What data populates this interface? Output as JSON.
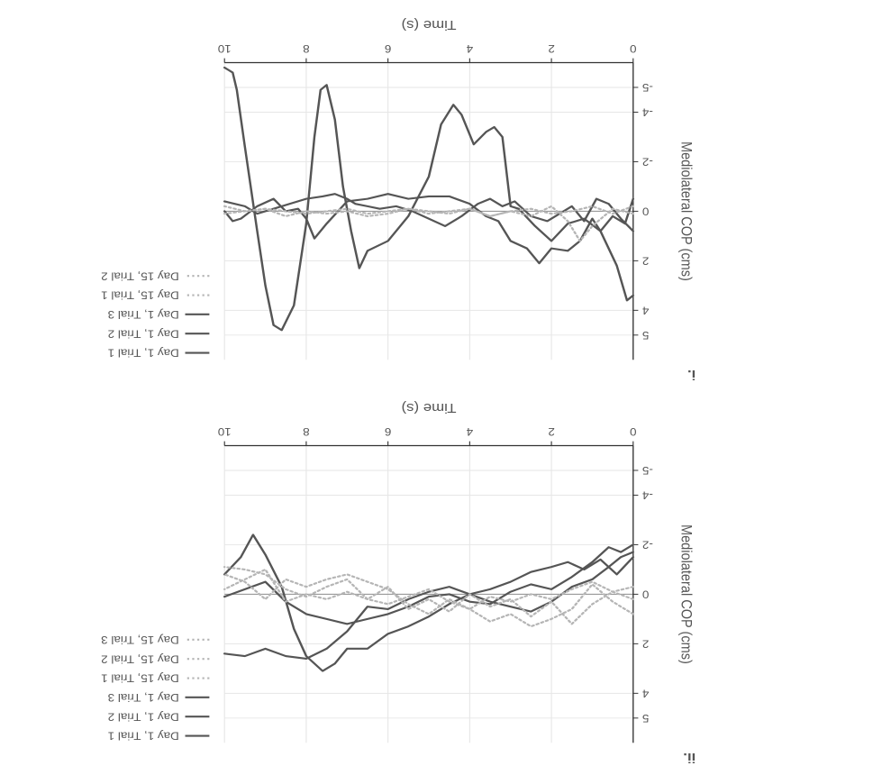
{
  "chart_data": [
    {
      "type": "line",
      "panel_label": "i.",
      "xlabel": "Time (s)",
      "ylabel": "Mediolateral COP (cms)",
      "xlim": [
        0,
        10
      ],
      "ylim": [
        -6,
        6
      ],
      "xticks": [
        0,
        2,
        4,
        6,
        8,
        10
      ],
      "yticks": [
        -5,
        -4,
        -2,
        0,
        2,
        4,
        5
      ],
      "grid": true,
      "legend_position": "right",
      "series": [
        {
          "name": "Day 1, Trial 1",
          "style": "solid",
          "color": "#555555",
          "x": [
            0,
            0.2,
            0.5,
            0.8,
            1.0,
            1.3,
            1.6,
            2.0,
            2.3,
            2.6,
            3.0,
            3.3,
            3.6,
            4.0,
            4.5,
            5.0,
            5.5,
            6.0,
            6.5,
            7.0,
            7.5,
            7.8,
            8.0,
            8.2,
            8.5,
            8.8,
            9.2,
            9.6,
            9.8,
            10.0
          ],
          "y": [
            -0.5,
            0.5,
            0.2,
            0.8,
            0.3,
            1.2,
            1.6,
            1.5,
            2.1,
            1.5,
            1.2,
            0.4,
            0.2,
            -0.3,
            -0.6,
            -0.6,
            -0.5,
            -0.7,
            -0.5,
            -0.4,
            0.5,
            1.1,
            0.3,
            -0.1,
            0.0,
            -0.5,
            -0.2,
            0.3,
            0.4,
            0.0
          ]
        },
        {
          "name": "Day 1, Trial 2",
          "style": "solid",
          "color": "#555555",
          "x": [
            0,
            0.3,
            0.6,
            0.9,
            1.2,
            1.5,
            1.8,
            2.1,
            2.5,
            2.9,
            3.2,
            3.5,
            3.8,
            4.2,
            4.6,
            5.0,
            5.4,
            5.8,
            6.2,
            6.5,
            6.8,
            7.0,
            7.3,
            7.6,
            8.0,
            8.4,
            8.8,
            9.2,
            9.5,
            10.0
          ],
          "y": [
            0.8,
            0.3,
            -0.3,
            -0.5,
            0.4,
            -0.2,
            0.1,
            0.4,
            0.2,
            -0.4,
            -0.2,
            -0.5,
            -0.3,
            0.2,
            0.6,
            0.3,
            0.0,
            -0.2,
            -0.1,
            -0.2,
            -0.3,
            -0.5,
            -0.7,
            -0.6,
            -0.5,
            -0.3,
            -0.1,
            0.1,
            -0.2,
            -0.4
          ]
        },
        {
          "name": "Day 1, Trial 3",
          "style": "solid",
          "color": "#555555",
          "x": [
            0,
            0.15,
            0.4,
            0.8,
            1.2,
            1.6,
            2.0,
            2.4,
            2.8,
            3.0,
            3.2,
            3.4,
            3.6,
            3.9,
            4.2,
            4.4,
            4.7,
            5.0,
            5.5,
            6.0,
            6.5,
            6.7,
            6.9,
            7.1,
            7.3,
            7.5,
            7.65,
            7.8,
            8.0,
            8.3,
            8.6,
            8.8,
            9.0,
            9.2,
            9.5,
            9.7,
            9.8,
            10.0
          ],
          "y": [
            3.4,
            3.6,
            2.2,
            0.8,
            0.3,
            0.5,
            1.2,
            0.6,
            -0.1,
            -0.2,
            -3.0,
            -3.4,
            -3.2,
            -2.7,
            -3.9,
            -4.3,
            -3.5,
            -1.4,
            0.2,
            1.2,
            1.6,
            2.3,
            0.8,
            -1.0,
            -3.7,
            -5.1,
            -4.9,
            -3.0,
            0.5,
            3.8,
            4.8,
            4.6,
            3.0,
            0.8,
            -2.6,
            -4.9,
            -5.6,
            -5.8
          ]
        },
        {
          "name": "Day 15, Trial 1",
          "style": "dotted",
          "color": "#b5b5b5",
          "x": [
            0,
            0.5,
            1.0,
            1.3,
            1.6,
            2.0,
            2.5,
            3.0,
            3.5,
            4.0,
            4.5,
            5.0,
            5.5,
            6.0,
            6.5,
            7.0,
            7.5,
            8.0,
            8.5,
            9.0,
            9.5,
            10.0
          ],
          "y": [
            0.1,
            -0.1,
            0.6,
            1.2,
            0.4,
            -0.2,
            0.2,
            0.0,
            0.2,
            -0.1,
            0.1,
            0.0,
            -0.1,
            0.1,
            0.2,
            0.0,
            0.1,
            0.0,
            0.2,
            -0.1,
            0.0,
            -0.2
          ]
        },
        {
          "name": "Day 15, Trial 2",
          "style": "dotted",
          "color": "#b5b5b5",
          "x": [
            0,
            0.5,
            1.0,
            1.5,
            2.0,
            2.5,
            3.0,
            3.5,
            4.0,
            4.5,
            5.0,
            5.5,
            6.0,
            6.5,
            7.0,
            7.5,
            8.0,
            8.5,
            9.0,
            9.5,
            10.0
          ],
          "y": [
            -0.2,
            0.1,
            -0.2,
            0.0,
            0.1,
            -0.1,
            0.0,
            0.2,
            -0.1,
            0.0,
            0.1,
            -0.1,
            0.0,
            0.1,
            -0.1,
            0.0,
            0.1,
            0.0,
            -0.1,
            0.0,
            0.1
          ]
        }
      ]
    },
    {
      "type": "line",
      "panel_label": "ii.",
      "xlabel": "Time (s)",
      "ylabel": "Mediolateral COP (cms)",
      "xlim": [
        0,
        10
      ],
      "ylim": [
        -6,
        6
      ],
      "xticks": [
        0,
        2,
        4,
        6,
        8,
        10
      ],
      "yticks": [
        -5,
        -4,
        -2,
        0,
        2,
        4,
        5
      ],
      "grid": true,
      "legend_position": "right",
      "series": [
        {
          "name": "Day 1, Trial 1",
          "style": "solid",
          "color": "#555555",
          "x": [
            0,
            0.3,
            0.6,
            1.0,
            1.5,
            2.0,
            2.5,
            3.0,
            3.5,
            4.0,
            4.5,
            5.0,
            5.5,
            6.0,
            6.5,
            7.0,
            7.5,
            8.0,
            8.5,
            9.0,
            9.5,
            10.0
          ],
          "y": [
            -1.7,
            -1.5,
            -1.1,
            -0.6,
            -0.3,
            0.3,
            0.7,
            0.5,
            0.3,
            0.0,
            -0.3,
            -0.1,
            0.2,
            0.6,
            0.5,
            1.5,
            2.2,
            2.6,
            2.5,
            2.2,
            2.5,
            2.4
          ]
        },
        {
          "name": "Day 1, Trial 2",
          "style": "solid",
          "color": "#555555",
          "x": [
            0,
            0.4,
            0.8,
            1.2,
            1.6,
            2.0,
            2.5,
            3.0,
            3.5,
            4.0,
            4.5,
            5.0,
            5.5,
            6.0,
            6.5,
            7.0,
            7.3,
            7.6,
            8.0,
            8.3,
            8.6,
            9.0,
            9.3,
            9.6,
            10.0
          ],
          "y": [
            -1.5,
            -0.8,
            -1.4,
            -1.0,
            -1.3,
            -1.1,
            -0.9,
            -0.5,
            -0.2,
            0.0,
            0.4,
            0.9,
            1.3,
            1.6,
            2.2,
            2.2,
            2.8,
            3.1,
            2.5,
            1.4,
            -0.3,
            -1.6,
            -2.4,
            -1.5,
            -0.8
          ]
        },
        {
          "name": "Day 1, Trial 3",
          "style": "solid",
          "color": "#555555",
          "x": [
            0,
            0.3,
            0.6,
            1.0,
            1.5,
            2.0,
            2.5,
            3.0,
            3.5,
            4.0,
            4.5,
            5.0,
            5.5,
            6.0,
            6.5,
            7.0,
            7.5,
            8.0,
            8.5,
            9.0,
            9.5,
            10.0
          ],
          "y": [
            -2.0,
            -1.7,
            -1.9,
            -1.3,
            -0.7,
            -0.2,
            -0.4,
            -0.1,
            0.4,
            0.3,
            0.0,
            0.1,
            0.5,
            0.8,
            1.0,
            1.2,
            1.0,
            0.8,
            0.3,
            -0.5,
            -0.2,
            0.1
          ]
        },
        {
          "name": "Day 15, Trial 1",
          "style": "dotted",
          "color": "#b5b5b5",
          "x": [
            0,
            0.5,
            1.0,
            1.5,
            2.0,
            2.5,
            3.0,
            3.5,
            4.0,
            4.5,
            5.0,
            5.5,
            6.0,
            6.5,
            7.0,
            7.5,
            8.0,
            8.5,
            9.0,
            9.5,
            10.0
          ],
          "y": [
            0.2,
            -0.1,
            0.4,
            1.2,
            0.3,
            0.9,
            0.2,
            0.5,
            0.0,
            0.7,
            0.2,
            0.6,
            -0.3,
            0.2,
            -0.6,
            -0.3,
            0.1,
            -0.2,
            -0.8,
            -1.0,
            -1.1
          ]
        },
        {
          "name": "Day 15, Trial 2",
          "style": "dotted",
          "color": "#b5b5b5",
          "x": [
            0,
            0.5,
            1.0,
            1.5,
            2.0,
            2.5,
            3.0,
            3.5,
            4.0,
            4.5,
            5.0,
            5.5,
            6.0,
            6.5,
            7.0,
            7.5,
            8.0,
            8.5,
            9.0,
            9.5,
            10.0
          ],
          "y": [
            0.8,
            0.3,
            -0.4,
            0.6,
            1.0,
            1.3,
            0.8,
            1.1,
            0.6,
            0.2,
            0.8,
            0.4,
            -0.2,
            -0.5,
            -0.8,
            -0.6,
            -0.3,
            -0.6,
            0.2,
            -0.5,
            -0.8
          ]
        },
        {
          "name": "Day 15, Trial 3",
          "style": "dotted",
          "color": "#b5b5b5",
          "x": [
            0,
            0.5,
            1.0,
            1.5,
            2.0,
            2.5,
            3.0,
            3.5,
            4.0,
            4.5,
            5.0,
            5.5,
            6.0,
            6.5,
            7.0,
            7.5,
            8.0,
            8.5,
            9.0,
            9.5,
            10.0
          ],
          "y": [
            -0.3,
            -0.1,
            -0.5,
            -0.2,
            0.2,
            0.0,
            0.3,
            0.1,
            0.6,
            0.3,
            -0.2,
            0.1,
            0.4,
            0.2,
            -0.1,
            0.2,
            0.0,
            0.3,
            -1.0,
            -0.6,
            -0.2
          ]
        }
      ]
    }
  ]
}
